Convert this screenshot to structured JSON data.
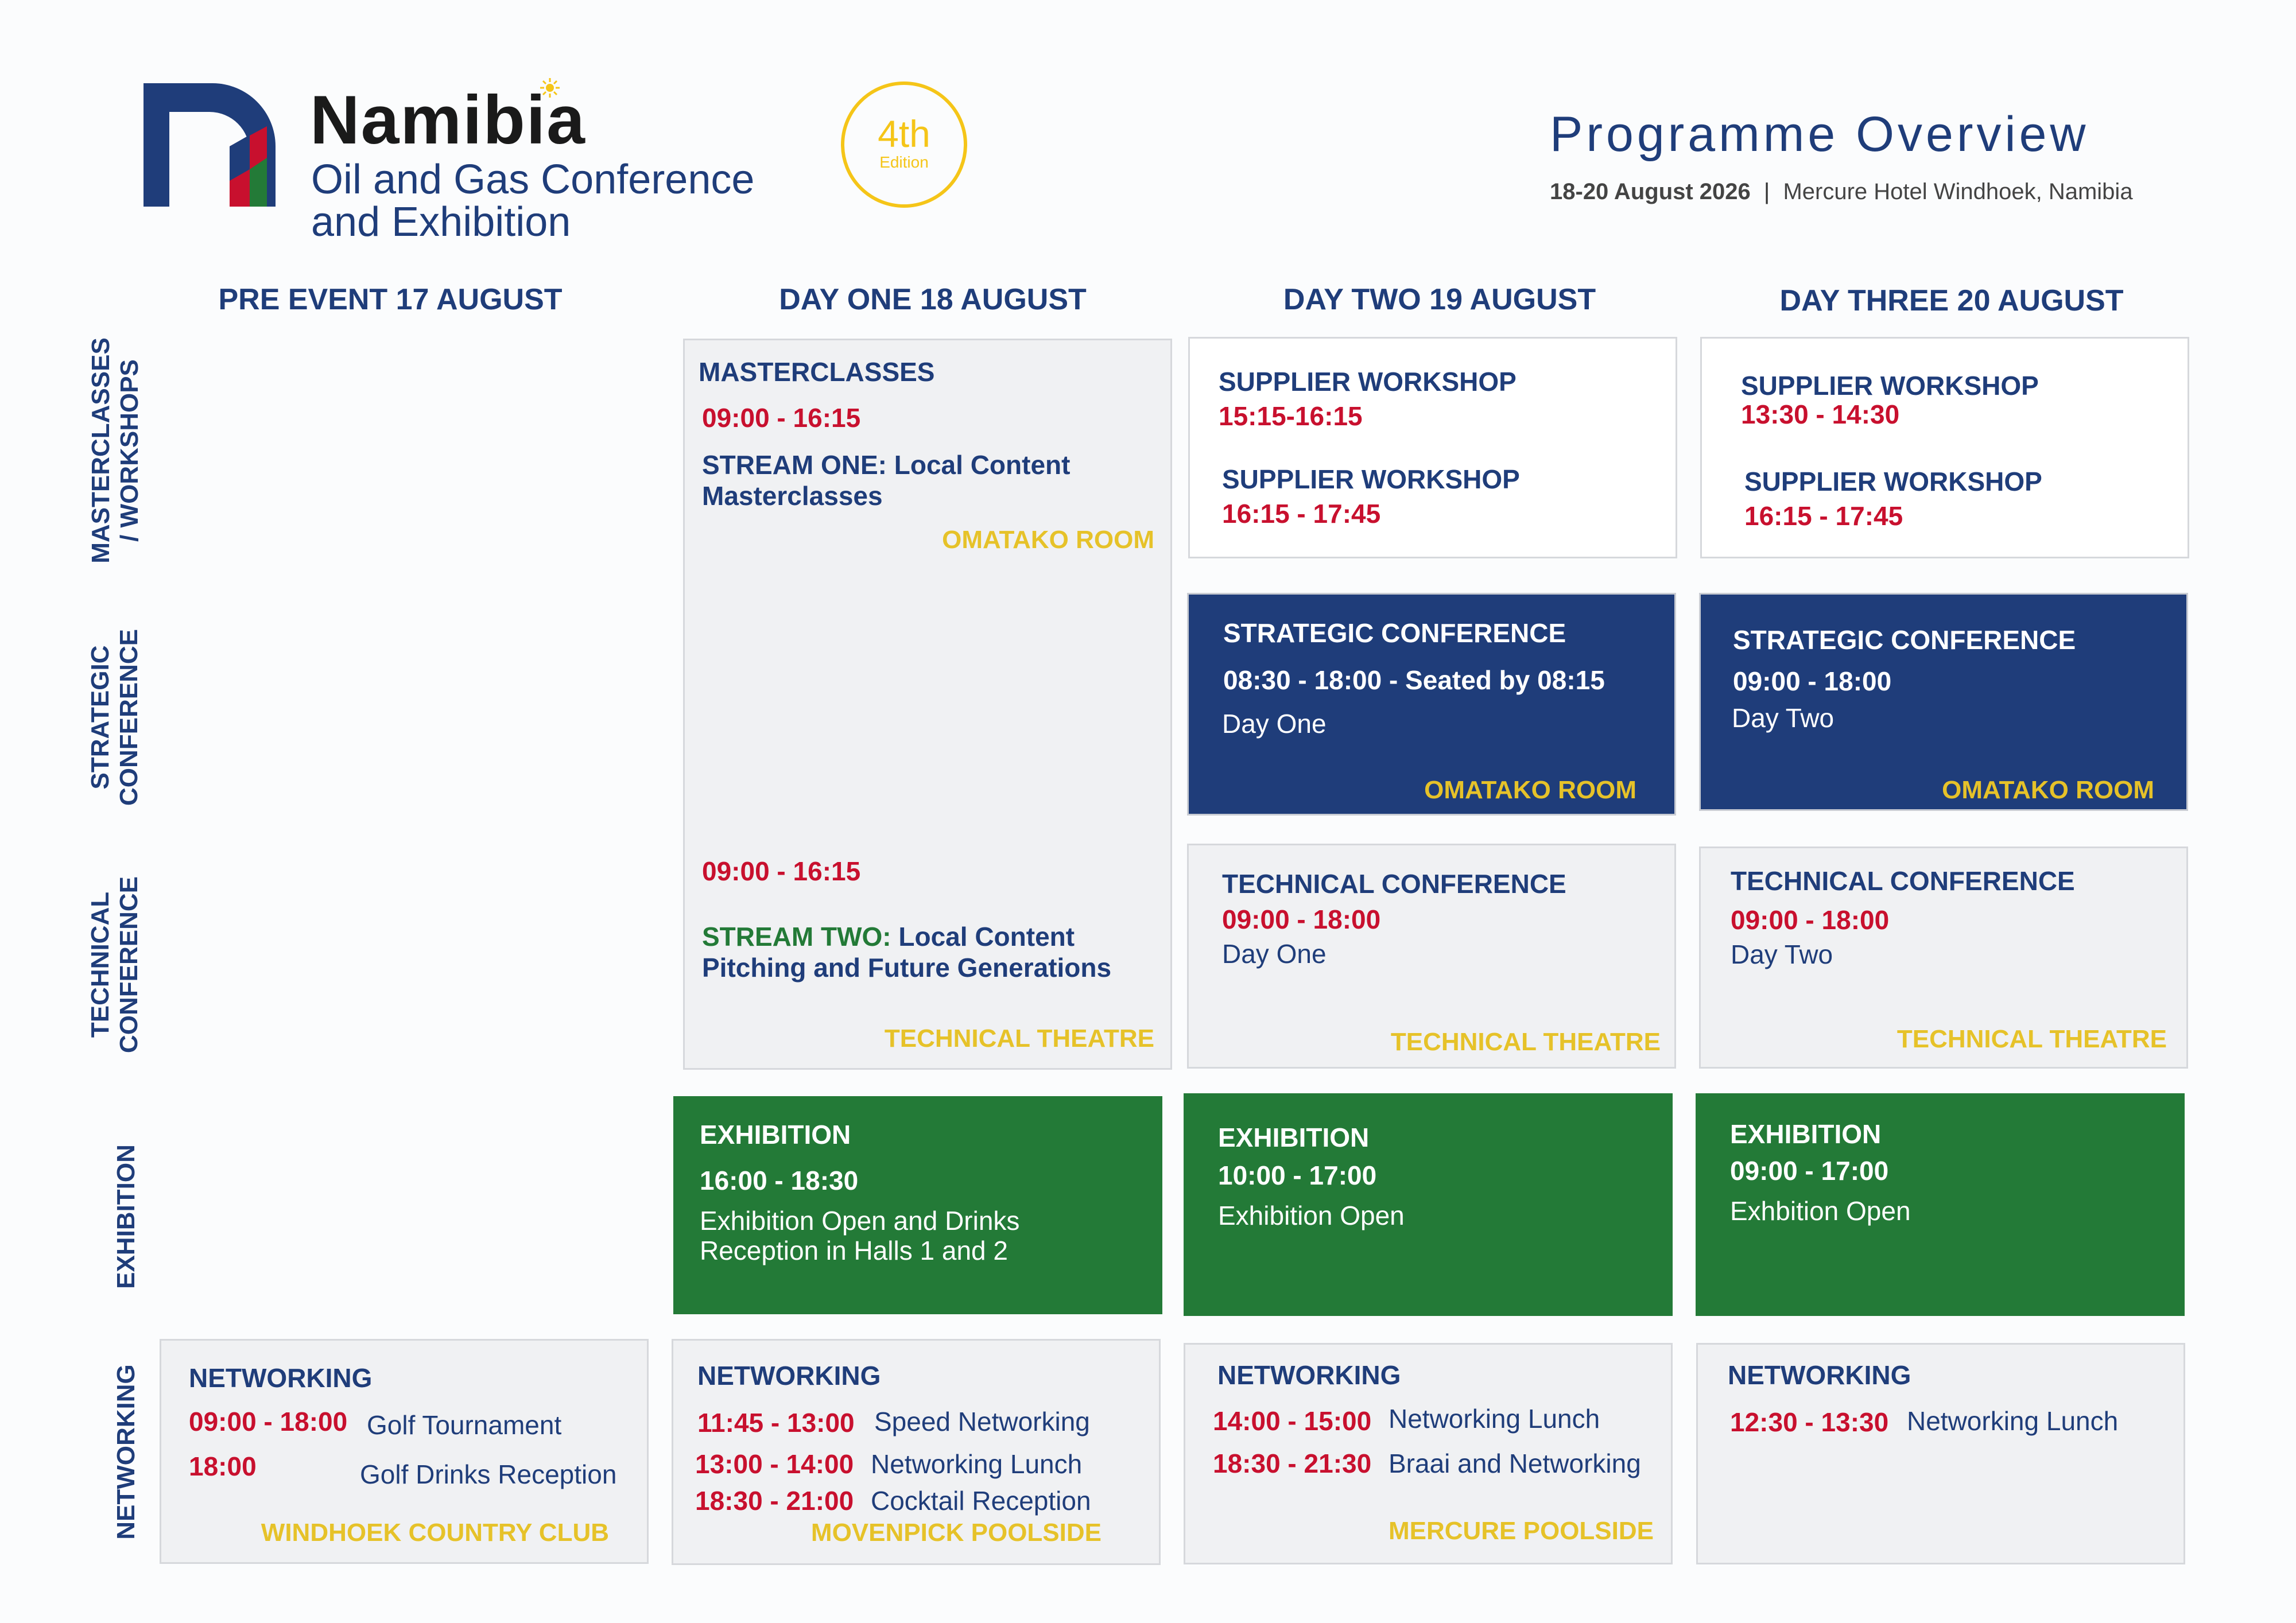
{
  "logo": {
    "brand": "Namibia",
    "line1": "Oil and Gas Conference",
    "line2": "and Exhibition",
    "edition_number": "4th",
    "edition_label": "Edition",
    "colors": {
      "navy": "#1f3d7a",
      "red": "#c8102e",
      "gold": "#f5c518",
      "green": "#237a37"
    }
  },
  "header": {
    "title": "Programme Overview",
    "dates": "18-20 August 2026",
    "separator": "|",
    "venue": "Mercure Hotel Windhoek, Namibia"
  },
  "columns": [
    "PRE EVENT 17 AUGUST",
    "DAY ONE 18 AUGUST",
    "DAY TWO 19 AUGUST",
    "DAY THREE 20 AUGUST"
  ],
  "rows": {
    "workshops_1": "MASTERCLASSES",
    "workshops_2": "/ WORKSHOPS",
    "strategic_1": "STRATEGIC",
    "strategic_2": "CONFERENCE",
    "technical_1": "TECHNICAL",
    "technical_2": "CONFERENCE",
    "exhibition": "EXHIBITION",
    "networking": "NETWORKING"
  },
  "day1_master": {
    "title": "MASTERCLASSES",
    "time1": "09:00 - 16:15",
    "stream1_a": "STREAM ONE: Local Content",
    "stream1_b": "Masterclasses",
    "room1": "OMATAKO ROOM",
    "time2": "09:00 - 16:15",
    "stream2_label": "STREAM TWO:",
    "stream2_a": " Local Content",
    "stream2_b": "Pitching and Future Generations",
    "room2": "TECHNICAL THEATRE"
  },
  "day2_workshop": {
    "title1": "SUPPLIER WORKSHOP",
    "time1": "15:15-16:15",
    "title2": "SUPPLIER WORKSHOP",
    "time2": "16:15 - 17:45"
  },
  "day3_workshop": {
    "title1": "SUPPLIER WORKSHOP",
    "time1": "13:30 - 14:30",
    "title2": "SUPPLIER WORKSHOP",
    "time2": "16:15 - 17:45"
  },
  "day2_strategic": {
    "title": "STRATEGIC CONFERENCE",
    "time": "08:30 - 18:00 - Seated by 08:15",
    "desc": "Day One",
    "room": "OMATAKO ROOM"
  },
  "day3_strategic": {
    "title": "STRATEGIC CONFERENCE",
    "time": "09:00 - 18:00",
    "desc": "Day Two",
    "room": "OMATAKO ROOM"
  },
  "day2_technical": {
    "title": "TECHNICAL CONFERENCE",
    "time": "09:00 - 18:00",
    "desc": "Day One",
    "room": "TECHNICAL THEATRE"
  },
  "day3_technical": {
    "title": "TECHNICAL CONFERENCE",
    "time": "09:00 - 18:00",
    "desc": "Day Two",
    "room": "TECHNICAL THEATRE"
  },
  "day1_exhibition": {
    "title": "EXHIBITION",
    "time": "16:00 - 18:30",
    "desc1": "Exhibition Open and Drinks",
    "desc2": "Reception in Halls 1 and 2"
  },
  "day2_exhibition": {
    "title": "EXHIBITION",
    "time": "10:00 - 17:00",
    "desc": "Exhibition Open"
  },
  "day3_exhibition": {
    "title": "EXHIBITION",
    "time": "09:00 - 17:00",
    "desc": "Exhbition Open"
  },
  "pre_networking": {
    "title": "NETWORKING",
    "t1": "09:00 - 18:00",
    "e1": "Golf Tournament",
    "t2": "18:00",
    "e2": "Golf Drinks Reception",
    "room": "WINDHOEK COUNTRY CLUB"
  },
  "day1_networking": {
    "title": "NETWORKING",
    "t1": "11:45 - 13:00",
    "e1": "Speed Networking",
    "t2": "13:00 - 14:00",
    "e2": "Networking Lunch",
    "t3": "18:30 - 21:00",
    "e3": "Cocktail Reception",
    "room": "MOVENPICK POOLSIDE"
  },
  "day2_networking": {
    "title": "NETWORKING",
    "t1": "14:00 - 15:00",
    "e1": "Networking Lunch",
    "t2": "18:30 - 21:30",
    "e2": "Braai and Networking",
    "room": "MERCURE POOLSIDE"
  },
  "day3_networking": {
    "title": "NETWORKING",
    "t1": "12:30 - 13:30",
    "e1": "Networking Lunch"
  }
}
